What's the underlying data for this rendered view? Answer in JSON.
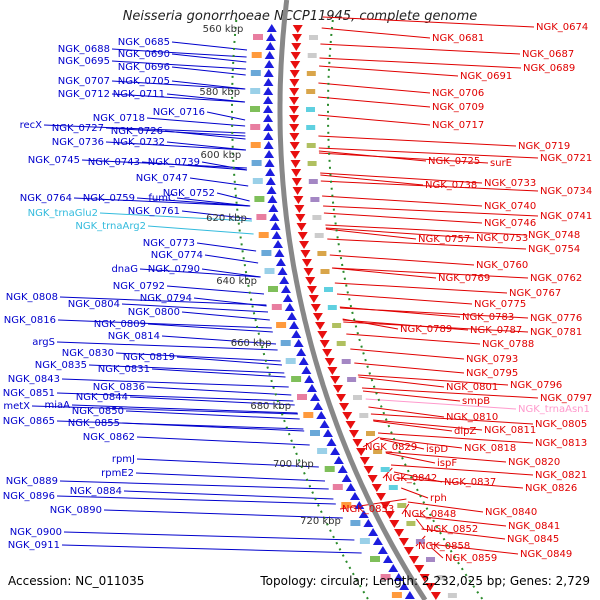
{
  "title": "Neisseria gonorrhoeae NCCP11945, complete genome",
  "accession": "Accession: NC_011035",
  "topology": "Topology: circular; Length: 2,232,025 bp; Genes: 2,729",
  "colors": {
    "left": "#0000cc",
    "right": "#e00000",
    "trna_left": "#33bbdd",
    "trna_right": "#ff99cc"
  },
  "scale_labels": [
    "580 kbp",
    "600 kbp",
    "620 kbp",
    "640 kbp",
    "660 kbp",
    "680 kbp",
    "700 kbp",
    "720 kbp",
    "560 kbp"
  ],
  "left_labels": [
    "NGK_0685",
    "NGK_0688",
    "NGK_0690",
    "NGK_0695",
    "NGK_0696",
    "NGK_0707",
    "NGK_0705",
    "NGK_0712",
    "NGK_0711",
    "NGK_0716",
    "NGK_0718",
    "recX",
    "NGK_0727",
    "NGK_0726",
    "NGK_0736",
    "NGK_0732",
    "NGK_0745",
    "NGK_0743",
    "NGK_0739",
    "NGK_0747",
    "NGK_0752",
    "NGK_0764",
    "NGK_0759",
    "fumC",
    "NGK_trnaGlu2",
    "NGK_0761",
    "NGK_trnaArg2",
    "NGK_0773",
    "NGK_0774",
    "dnaG",
    "NGK_0790",
    "NGK_0792",
    "NGK_0794",
    "NGK_0808",
    "NGK_0804",
    "NGK_0800",
    "NGK_0816",
    "NGK_0809",
    "NGK_0814",
    "argS",
    "NGK_0830",
    "NGK_0819",
    "NGK_0835",
    "NGK_0831",
    "NGK_0843",
    "NGK_0836",
    "NGK_0851",
    "NGK_0844",
    "metX",
    "miaA",
    "NGK_0850",
    "NGK_0865",
    "NGK_0855",
    "NGK_0862",
    "rpmJ",
    "rpmE2",
    "NGK_0889",
    "NGK_0884",
    "NGK_0896",
    "NGK_0890",
    "NGK_0900",
    "NGK_0911"
  ],
  "right_labels": [
    "NGK_0674",
    "NGK_0681",
    "NGK_0687",
    "NGK_0689",
    "NGK_0691",
    "NGK_0706",
    "NGK_0709",
    "NGK_0717",
    "NGK_0719",
    "NGK_0721",
    "NGK_0725",
    "surE",
    "NGK_0738",
    "NGK_0733",
    "NGK_0734",
    "NGK_0740",
    "NGK_0741",
    "NGK_0746",
    "NGK_0748",
    "NGK_0757",
    "NGK_0753",
    "NGK_0754",
    "NGK_0760",
    "NGK_0769",
    "NGK_0762",
    "NGK_0767",
    "NGK_0775",
    "NGK_0783",
    "NGK_0776",
    "NGK_0789",
    "NGK_0787",
    "NGK_0781",
    "NGK_0788",
    "NGK_0793",
    "NGK_0795",
    "NGK_0801",
    "NGK_0796",
    "smpB",
    "NGK_0797",
    "NGK_trnaAsn1",
    "NGK_0810",
    "NGK_0805",
    "dipZ",
    "NGK_0811",
    "NGK_0818",
    "NGK_0813",
    "NGK_0829",
    "ispD",
    "NGK_0820",
    "ispF",
    "NGK_0821",
    "NGK_0842",
    "NGK_0837",
    "NGK_0826",
    "rph",
    "NGK_0840",
    "NGK_0853",
    "NGK_0848",
    "NGK_0841",
    "NGK_0852",
    "NGK_0845",
    "NGK_0858",
    "NGK_0849",
    "NGK_0859"
  ]
}
